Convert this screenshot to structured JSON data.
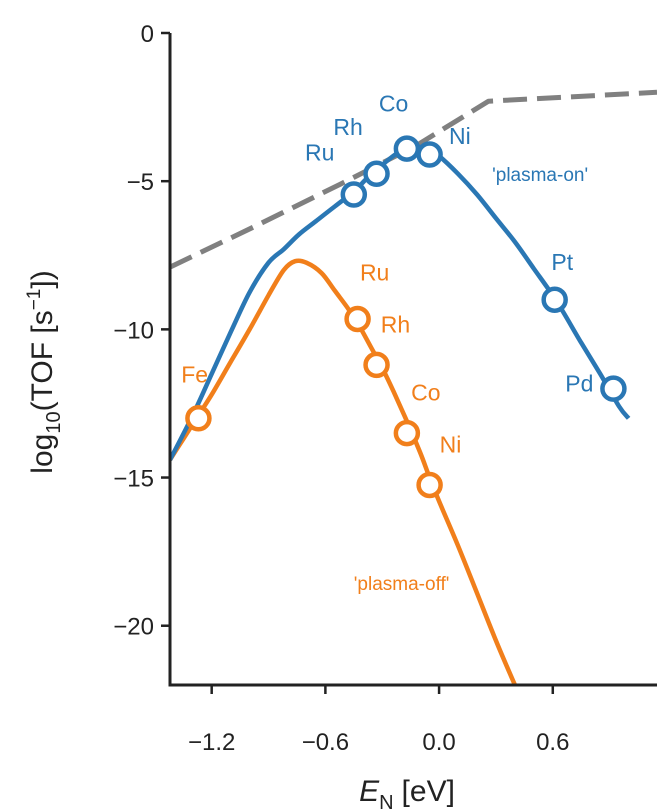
{
  "chart_data": {
    "type": "line",
    "title": "",
    "xlabel": {
      "main": "E",
      "sub": "N",
      "unit": "[eV]"
    },
    "ylabel": {
      "pre": "log",
      "sub": "10",
      "mid": "(TOF [s",
      "sup": "−1",
      "post": "])"
    },
    "xlim": [
      -1.42,
      1.15
    ],
    "ylim": [
      -22,
      0
    ],
    "xticks": [
      {
        "value": -1.2,
        "label": "−1.2"
      },
      {
        "value": -0.6,
        "label": "−0.6"
      },
      {
        "value": 0.0,
        "label": "0.0"
      },
      {
        "value": 0.6,
        "label": "0.6"
      }
    ],
    "yticks": [
      {
        "value": 0,
        "label": "0"
      },
      {
        "value": -5,
        "label": "−5"
      },
      {
        "value": -10,
        "label": "−10"
      },
      {
        "value": -15,
        "label": "−15"
      },
      {
        "value": -20,
        "label": "−20"
      }
    ],
    "grid": false,
    "colors": {
      "plasma_on": "#2a77b4",
      "plasma_off": "#f17f1b",
      "limit": "#808080",
      "axis": "#222222"
    },
    "series": [
      {
        "name": "'plasma-on'",
        "key": "plasma_on",
        "style": "solid",
        "x": [
          -1.42,
          -1.3,
          -1.2,
          -1.1,
          -1.0,
          -0.9,
          -0.82,
          -0.74,
          -0.65,
          -0.55,
          -0.45,
          -0.38,
          -0.3,
          -0.22,
          -0.15,
          -0.1,
          -0.05,
          0.0,
          0.1,
          0.2,
          0.3,
          0.4,
          0.5,
          0.62,
          0.75,
          0.85,
          0.95,
          1.0
        ],
        "y": [
          -14.4,
          -12.9,
          -11.5,
          -10.1,
          -8.75,
          -7.75,
          -7.3,
          -6.8,
          -6.35,
          -5.85,
          -5.35,
          -4.9,
          -4.45,
          -4.05,
          -3.85,
          -3.85,
          -3.95,
          -4.15,
          -4.75,
          -5.45,
          -6.25,
          -7.05,
          -7.95,
          -9.05,
          -10.45,
          -11.5,
          -12.6,
          -13.0
        ]
      },
      {
        "name": "'plasma-off'",
        "key": "plasma_off",
        "style": "solid",
        "x": [
          -1.42,
          -1.35,
          -1.28,
          -1.2,
          -1.1,
          -1.0,
          -0.9,
          -0.82,
          -0.76,
          -0.7,
          -0.62,
          -0.55,
          -0.48,
          -0.42,
          -0.36,
          -0.3,
          -0.24,
          -0.17,
          -0.1,
          -0.05,
          0.0,
          0.1,
          0.2,
          0.3,
          0.4
        ],
        "y": [
          -14.4,
          -13.7,
          -13.0,
          -12.2,
          -11.1,
          -10.0,
          -8.85,
          -8.0,
          -7.7,
          -7.75,
          -8.1,
          -8.7,
          -9.3,
          -9.9,
          -10.6,
          -11.3,
          -12.1,
          -13.1,
          -14.15,
          -15.0,
          -15.8,
          -17.3,
          -18.9,
          -20.5,
          -22.0
        ]
      },
      {
        "name": "",
        "key": "limit",
        "style": "dashed",
        "x": [
          -1.42,
          -0.98,
          -0.52,
          -0.12,
          0.26,
          1.15
        ],
        "y": [
          -7.9,
          -6.55,
          -5.1,
          -3.8,
          -2.3,
          -2.0
        ]
      }
    ],
    "points": [
      {
        "label": "Ru",
        "series": "plasma_on",
        "x": -0.45,
        "y": -5.45,
        "lx": -0.63,
        "ly": -4.3
      },
      {
        "label": "Rh",
        "series": "plasma_on",
        "x": -0.33,
        "y": -4.75,
        "lx": -0.48,
        "ly": -3.45
      },
      {
        "label": "Co",
        "series": "plasma_on",
        "x": -0.17,
        "y": -3.9,
        "lx": -0.24,
        "ly": -2.65
      },
      {
        "label": "Ni",
        "series": "plasma_on",
        "x": -0.05,
        "y": -4.1,
        "lx": 0.11,
        "ly": -3.75
      },
      {
        "label": "Pt",
        "series": "plasma_on",
        "x": 0.61,
        "y": -9.0,
        "lx": 0.65,
        "ly": -8.0
      },
      {
        "label": "Pd",
        "series": "plasma_on",
        "x": 0.92,
        "y": -12.0,
        "lx": 0.74,
        "ly": -12.1
      },
      {
        "label": "Fe",
        "series": "plasma_off",
        "x": -1.27,
        "y": -13.0,
        "lx": -1.29,
        "ly": -11.8
      },
      {
        "label": "Ru",
        "series": "plasma_off",
        "x": -0.43,
        "y": -9.65,
        "lx": -0.34,
        "ly": -8.35
      },
      {
        "label": "Rh",
        "series": "plasma_off",
        "x": -0.33,
        "y": -11.2,
        "lx": -0.23,
        "ly": -10.1
      },
      {
        "label": "Co",
        "series": "plasma_off",
        "x": -0.17,
        "y": -13.5,
        "lx": -0.07,
        "ly": -12.4
      },
      {
        "label": "Ni",
        "series": "plasma_off",
        "x": -0.05,
        "y": -15.25,
        "lx": 0.06,
        "ly": -14.15
      }
    ],
    "annotations": [
      {
        "text": "'plasma-on'",
        "series": "plasma_on",
        "x": 0.28,
        "y": -5.0
      },
      {
        "text": "'plasma-off'",
        "series": "plasma_off",
        "x": -0.45,
        "y": -18.8
      }
    ]
  }
}
